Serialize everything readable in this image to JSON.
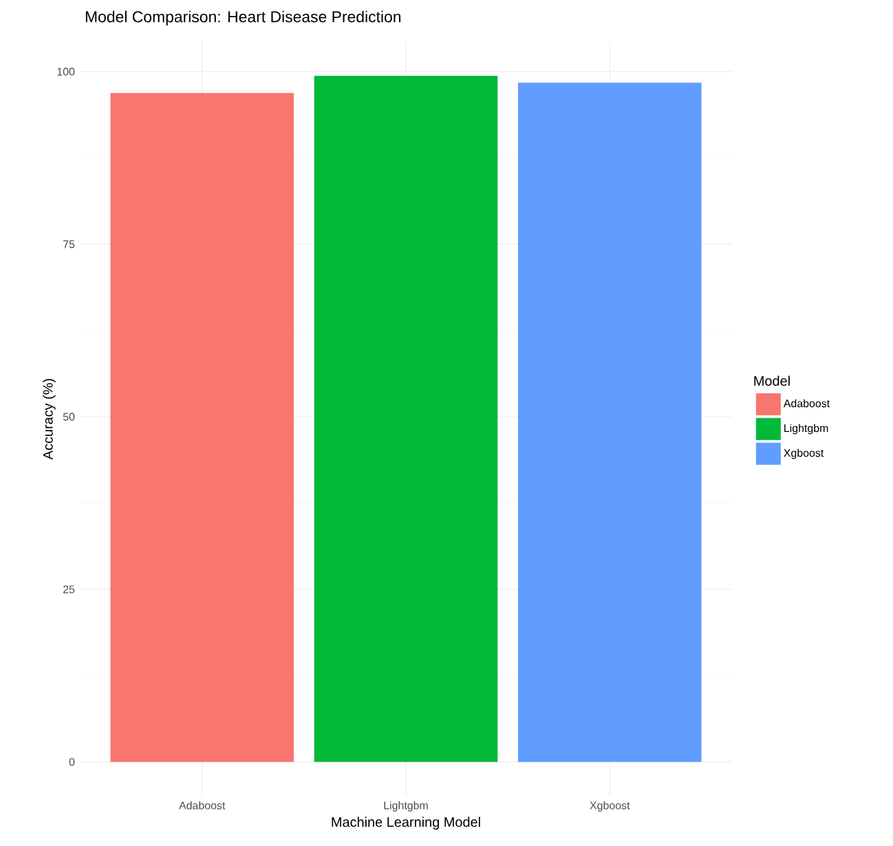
{
  "chart_data": {
    "type": "bar",
    "title": "Model Comparison: Heart Disease Prediction",
    "xlabel": "Machine Learning Model",
    "ylabel": "Accuracy (%)",
    "legend_title": "Model",
    "categories": [
      "Adaboost",
      "Lightgbm",
      "Xgboost"
    ],
    "series": [
      {
        "name": "Adaboost",
        "color": "#f8766d",
        "values": [
          96.9,
          null,
          null
        ]
      },
      {
        "name": "Lightgbm",
        "color": "#00ba38",
        "values": [
          null,
          99.4,
          null
        ]
      },
      {
        "name": "Xgboost",
        "color": "#619cff",
        "values": [
          null,
          null,
          98.4
        ]
      }
    ],
    "ylim": [
      -5,
      104.4
    ],
    "yticks": [
      0,
      25,
      50,
      75,
      100
    ],
    "grid": true,
    "legend": "right"
  }
}
